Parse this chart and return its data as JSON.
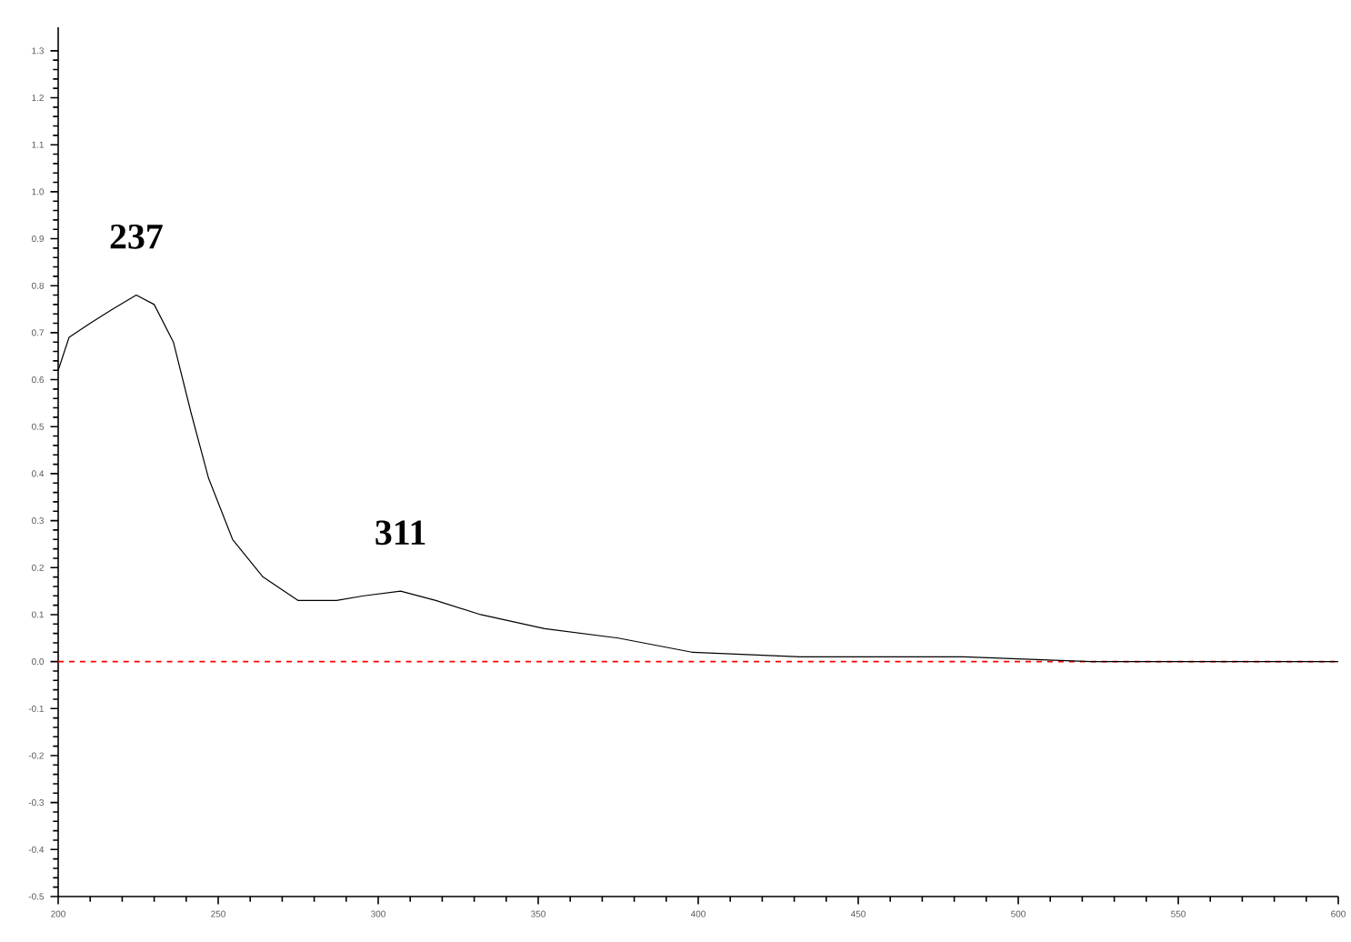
{
  "chart_data": {
    "type": "line",
    "x": [
      200,
      203.4,
      210,
      217,
      224.4,
      230,
      236,
      241.5,
      247,
      254.5,
      264,
      275,
      287,
      295.5,
      307,
      318,
      332,
      352,
      375,
      398,
      431.8,
      483,
      522.7,
      600
    ],
    "series": [
      {
        "color": "#000000",
        "values": [
          0.62,
          0.69,
          0.72,
          0.75,
          0.78,
          0.76,
          0.68,
          0.53,
          0.39,
          0.26,
          0.18,
          0.13,
          0.13,
          0.14,
          0.15,
          0.13,
          0.1,
          0.07,
          0.05,
          0.02,
          0.01,
          0.01,
          0,
          0
        ]
      }
    ],
    "xlim": [
      200,
      600
    ],
    "ylim": [
      -0.5,
      1.35
    ],
    "xticks": [
      200,
      250,
      300,
      350,
      400,
      450,
      500,
      550,
      600
    ],
    "yticks": [
      -0.5,
      -0.4,
      -0.3,
      -0.2,
      -0.1,
      {
        "value": 0,
        "label": "0.0"
      },
      0.1,
      0.2,
      0.3,
      0.4,
      0.5,
      0.6,
      0.7,
      0.8,
      0.9,
      {
        "value": 1,
        "label": "1.0"
      },
      1.1,
      1.2,
      1.3
    ],
    "ref_lines": [
      {
        "axis": "y",
        "value": 0,
        "color": "#ff0000",
        "line_style": "dashed"
      }
    ],
    "annotations": [
      {
        "text": "237",
        "x": 224.4,
        "y": 0.78
      },
      {
        "text": "311",
        "x": 307,
        "y": 0.15
      }
    ],
    "grid": false,
    "marker": "none",
    "line_style": "solid"
  }
}
